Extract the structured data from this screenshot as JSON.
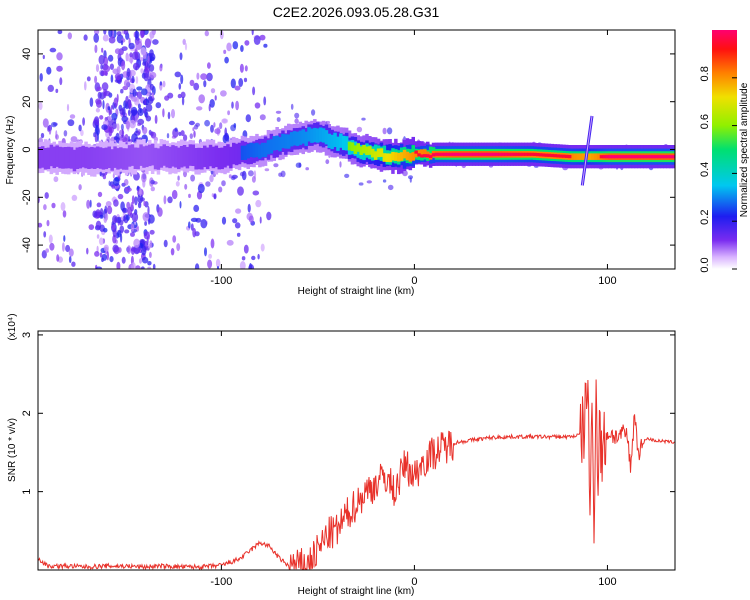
{
  "title": "C2E2.2026.093.05.28.G31",
  "chart_data": [
    {
      "type": "heatmap",
      "name": "spectrogram",
      "xlabel": "Height of straight line (km)",
      "ylabel": "Frequency (Hz)",
      "xlim": [
        -195,
        135
      ],
      "ylim": [
        -50,
        50
      ],
      "xticks": [
        -100,
        0,
        100
      ],
      "yticks": [
        -40,
        -20,
        0,
        20,
        40
      ],
      "colorbar": {
        "label": "Normalized spectral amplitude",
        "range": [
          0.0,
          1.0
        ],
        "ticks": [
          0.0,
          0.2,
          0.4,
          0.6,
          0.8
        ],
        "tick_labels": [
          "0.0",
          "0.2",
          "0.4",
          "0.6",
          "0.8"
        ]
      },
      "ridge": {
        "x": [
          -195,
          -170,
          -140,
          -120,
          -100,
          -80,
          -60,
          -50,
          -40,
          -30,
          -20,
          -10,
          0,
          20,
          40,
          60,
          80,
          90,
          100,
          110,
          120,
          135
        ],
        "freq": [
          -3,
          -4,
          -3,
          -3,
          -3,
          0,
          5,
          6,
          3,
          0,
          -2,
          -3,
          -2,
          -2,
          -2,
          -2,
          -3,
          -3,
          -3,
          -3,
          -3,
          -3
        ],
        "amplitude": [
          0.2,
          0.2,
          0.15,
          0.2,
          0.25,
          0.35,
          0.4,
          0.45,
          0.5,
          0.6,
          0.7,
          0.8,
          0.9,
          0.95,
          0.95,
          0.9,
          0.9,
          0.85,
          0.95,
          0.95,
          0.95,
          0.95
        ]
      }
    },
    {
      "type": "line",
      "name": "snr",
      "xlabel": "Height of straight line (km)",
      "ylabel": "SNR (10 * v/v)",
      "scale_label": "(x10⁴)",
      "xlim": [
        -195,
        135
      ],
      "ylim": [
        0,
        3.05
      ],
      "xticks": [
        -100,
        0,
        100
      ],
      "yticks": [
        1,
        2,
        3
      ],
      "color": "#e8312a",
      "series": [
        {
          "name": "SNR",
          "x": [
            -195,
            -190,
            -180,
            -170,
            -160,
            -150,
            -140,
            -130,
            -120,
            -110,
            -100,
            -95,
            -90,
            -85,
            -80,
            -75,
            -70,
            -65,
            -60,
            -55,
            -50,
            -45,
            -40,
            -35,
            -30,
            -25,
            -20,
            -15,
            -10,
            -5,
            0,
            5,
            10,
            20,
            30,
            40,
            50,
            60,
            70,
            80,
            85,
            88,
            90,
            91,
            92,
            93,
            94,
            95,
            96,
            97,
            98,
            100,
            105,
            110,
            112,
            114,
            116,
            120,
            125,
            130,
            135
          ],
          "y": [
            0.15,
            0.05,
            0.05,
            0.04,
            0.05,
            0.05,
            0.04,
            0.05,
            0.04,
            0.04,
            0.06,
            0.1,
            0.15,
            0.25,
            0.35,
            0.3,
            0.15,
            0.05,
            0.05,
            0.08,
            0.25,
            0.45,
            0.5,
            0.7,
            0.85,
            1.0,
            1.1,
            1.2,
            1.0,
            1.35,
            1.2,
            1.4,
            1.5,
            1.62,
            1.66,
            1.69,
            1.7,
            1.7,
            1.7,
            1.7,
            1.72,
            1.8,
            2.6,
            0.3,
            2.2,
            0.5,
            2.5,
            1.2,
            1.9,
            1.4,
            1.6,
            1.75,
            1.7,
            1.75,
            1.3,
            2.0,
            1.5,
            1.68,
            1.65,
            1.64,
            1.63
          ]
        }
      ]
    }
  ]
}
